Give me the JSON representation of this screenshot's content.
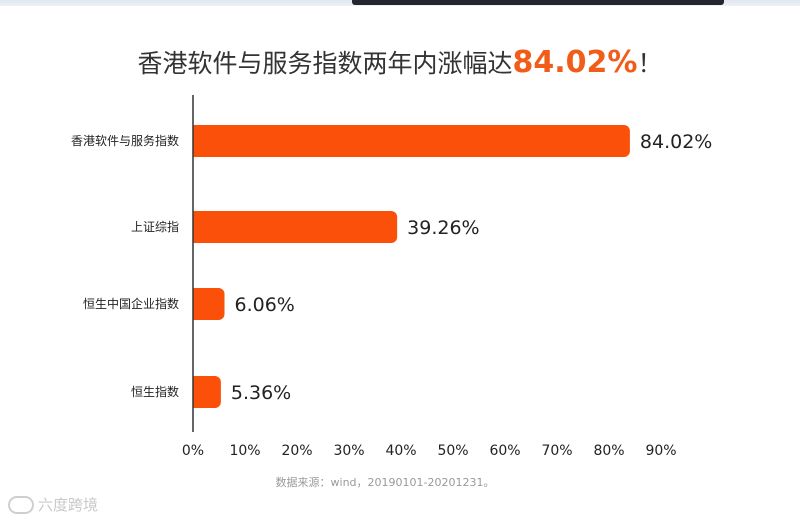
{
  "title": {
    "prefix": "香港软件与服务指数两年内涨幅达",
    "highlight": "84.02%",
    "suffix": "！"
  },
  "source": "数据来源：wind，20190101-20201231。",
  "watermark": "六度跨境",
  "colors": {
    "bar": "#fa500a",
    "axis": "#333333",
    "text": "#222222"
  },
  "chart_data": {
    "type": "bar",
    "orientation": "horizontal",
    "categories": [
      "香港软件与服务指数",
      "上证综指",
      "恒生中国企业指数",
      "恒生指数"
    ],
    "values": [
      84.02,
      39.26,
      6.06,
      5.36
    ],
    "value_labels": [
      "84.02%",
      "39.26%",
      "6.06%",
      "5.36%"
    ],
    "xlim": [
      0,
      90
    ],
    "xticks": [
      0,
      10,
      20,
      30,
      40,
      50,
      60,
      70,
      80,
      90
    ],
    "xtick_labels": [
      "0%",
      "10%",
      "20%",
      "30%",
      "40%",
      "50%",
      "60%",
      "70%",
      "80%",
      "90%"
    ],
    "grid": false,
    "legend": "none"
  }
}
